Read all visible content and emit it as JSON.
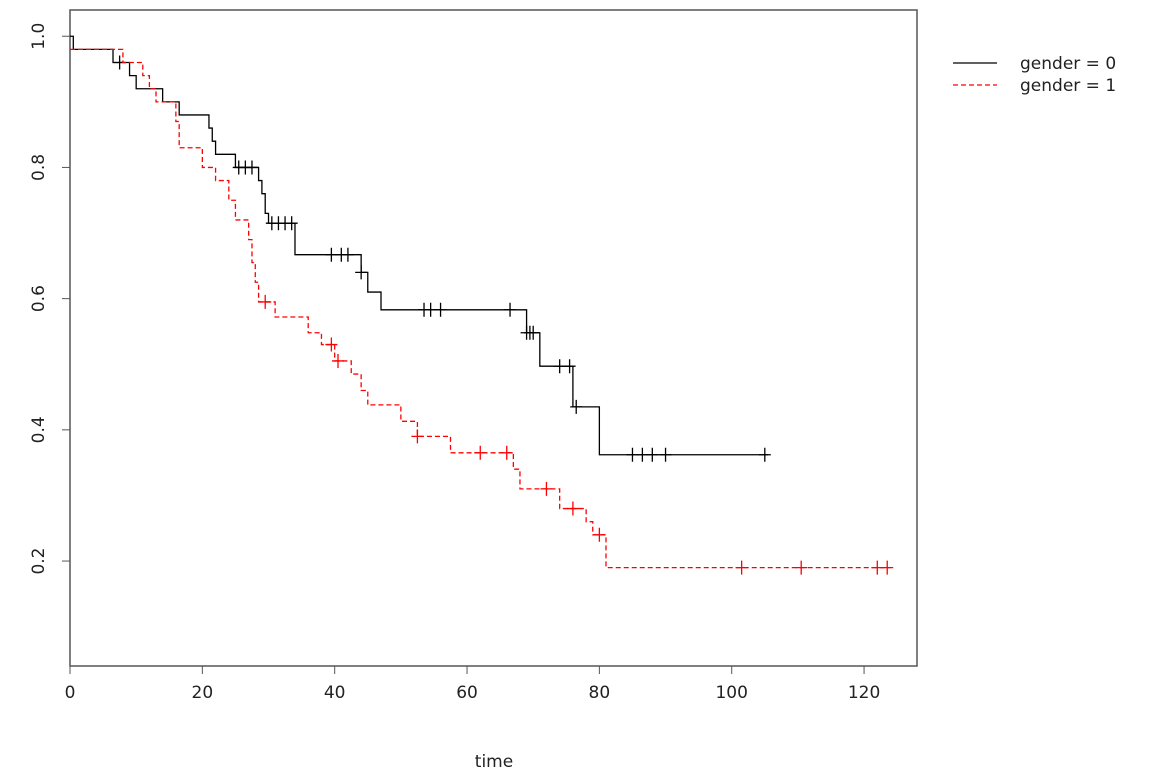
{
  "chart_data": {
    "type": "line",
    "xlabel": "time",
    "ylabel": "",
    "xlim": [
      0,
      128
    ],
    "ylim": [
      0.04,
      1.04
    ],
    "x_ticks": [
      0,
      20,
      40,
      60,
      80,
      100,
      120
    ],
    "y_ticks": [
      0.2,
      0.4,
      0.6,
      0.8,
      1.0
    ],
    "x_tick_labels": [
      "0",
      "20",
      "40",
      "60",
      "80",
      "100",
      "120"
    ],
    "y_tick_labels": [
      "0.2",
      "0.4",
      "0.6",
      "0.8",
      "1.0"
    ],
    "legend_position": "outside-top-right",
    "series": [
      {
        "name": "gender = 0",
        "color": "#000000",
        "dash": "solid",
        "steps": [
          [
            0,
            1.0
          ],
          [
            0.5,
            0.98
          ],
          [
            6.5,
            0.96
          ],
          [
            9,
            0.94
          ],
          [
            10,
            0.92
          ],
          [
            14,
            0.9
          ],
          [
            16.5,
            0.88
          ],
          [
            21,
            0.86
          ],
          [
            21.5,
            0.84
          ],
          [
            22,
            0.82
          ],
          [
            25,
            0.8
          ],
          [
            28.5,
            0.78
          ],
          [
            29,
            0.76
          ],
          [
            29.5,
            0.73
          ],
          [
            30,
            0.715
          ],
          [
            34,
            0.667
          ],
          [
            44,
            0.64
          ],
          [
            45,
            0.61
          ],
          [
            47,
            0.583
          ],
          [
            69,
            0.548
          ],
          [
            71,
            0.497
          ],
          [
            76,
            0.435
          ],
          [
            80,
            0.362
          ],
          [
            105.5,
            0.362
          ]
        ],
        "censor_times": [
          7.5,
          25.5,
          26.5,
          27.5,
          30.5,
          31.5,
          32.5,
          33.5,
          39.5,
          41,
          42,
          44,
          53.5,
          54.5,
          56,
          66.5,
          69,
          69.5,
          70,
          74,
          75.5,
          76.5,
          85,
          86.5,
          88,
          90,
          105
        ]
      },
      {
        "name": "gender = 1",
        "color": "#ff0000",
        "dash": "dashed",
        "steps": [
          [
            0,
            0.98
          ],
          [
            8,
            0.96
          ],
          [
            11,
            0.94
          ],
          [
            12,
            0.92
          ],
          [
            13,
            0.9
          ],
          [
            16,
            0.87
          ],
          [
            16.5,
            0.83
          ],
          [
            20,
            0.8
          ],
          [
            22,
            0.78
          ],
          [
            24,
            0.75
          ],
          [
            25,
            0.72
          ],
          [
            27,
            0.69
          ],
          [
            27.5,
            0.655
          ],
          [
            28,
            0.625
          ],
          [
            28.5,
            0.595
          ],
          [
            31,
            0.572
          ],
          [
            36,
            0.548
          ],
          [
            38,
            0.53
          ],
          [
            40,
            0.505
          ],
          [
            42.5,
            0.485
          ],
          [
            44,
            0.46
          ],
          [
            45,
            0.438
          ],
          [
            50,
            0.413
          ],
          [
            52.5,
            0.39
          ],
          [
            57.5,
            0.365
          ],
          [
            67,
            0.34
          ],
          [
            68,
            0.31
          ],
          [
            74,
            0.28
          ],
          [
            78,
            0.26
          ],
          [
            79,
            0.24
          ],
          [
            81,
            0.19
          ],
          [
            124,
            0.19
          ]
        ],
        "censor_times": [
          29.5,
          39.5,
          40.5,
          52.5,
          62,
          66,
          72,
          76,
          80,
          101.5,
          110.5,
          122,
          123.5
        ]
      }
    ]
  }
}
